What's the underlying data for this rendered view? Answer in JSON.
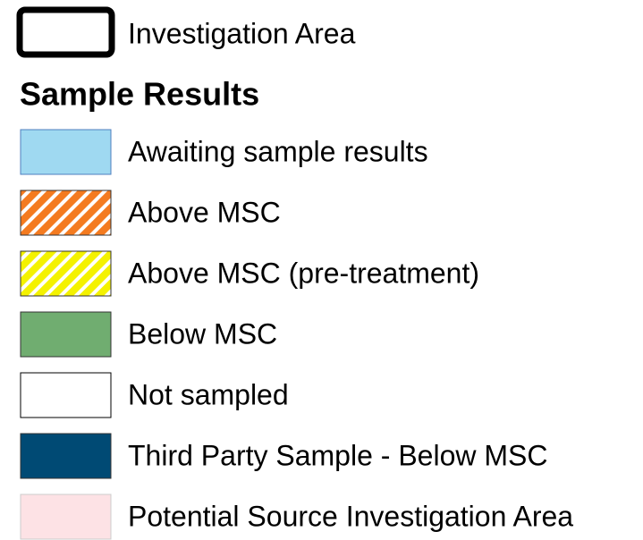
{
  "legend": {
    "boundary": {
      "label": "Investigation Area"
    },
    "title": "Sample Results",
    "items": [
      {
        "label": "Awaiting sample results",
        "color": "#9fd9f1",
        "border": "#4f7fbf"
      },
      {
        "label": "Above MSC",
        "color": "#f47b20",
        "border": "#333333",
        "hatch": "#ffffff"
      },
      {
        "label": "Above MSC (pre-treatment)",
        "color": "#f4f200",
        "border": "#333333",
        "hatch": "#ffffff"
      },
      {
        "label": "Below MSC",
        "color": "#70ad70",
        "border": "#333333"
      },
      {
        "label": "Not sampled",
        "color": "#ffffff",
        "border": "#000000"
      },
      {
        "label": "Third Party Sample - Below MSC",
        "color": "#004a74",
        "border": "#333333"
      },
      {
        "label": "Potential Source Investigation Area",
        "color": "#fde2e5",
        "border": "#cccccc"
      }
    ]
  }
}
